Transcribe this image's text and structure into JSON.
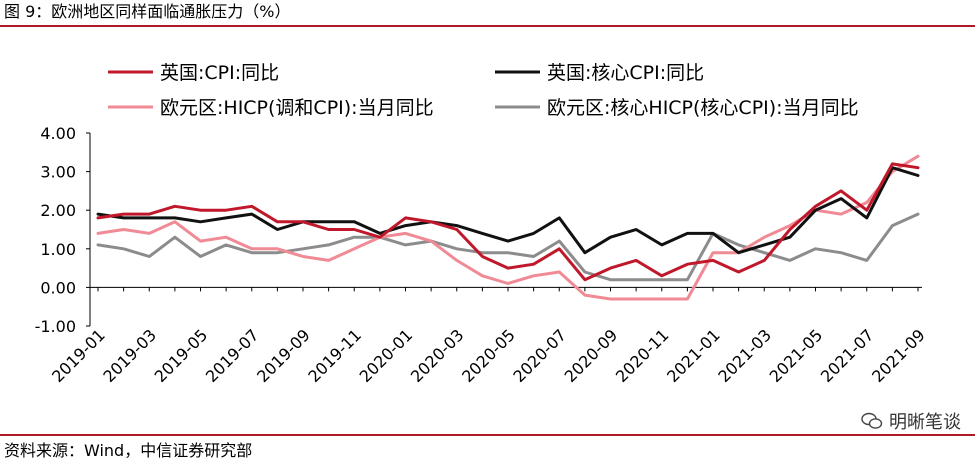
{
  "header": {
    "title": "图 9：欧洲地区同样面临通胀压力（%）"
  },
  "footer": {
    "source": "资料来源：Wind，中信证券研究部"
  },
  "watermark": {
    "text": "明晰笔谈"
  },
  "chart_data": {
    "type": "line",
    "title": "图 9：欧洲地区同样面临通胀压力（%）",
    "xlabel": "",
    "ylabel": "",
    "ylim": [
      -1.0,
      4.0
    ],
    "yticks": [
      "4.00",
      "3.00",
      "2.00",
      "1.00",
      "0.00",
      "-1.00"
    ],
    "grid": false,
    "legend_position": "top",
    "x": [
      "2019-01",
      "2019-02",
      "2019-03",
      "2019-04",
      "2019-05",
      "2019-06",
      "2019-07",
      "2019-08",
      "2019-09",
      "2019-10",
      "2019-11",
      "2019-12",
      "2020-01",
      "2020-02",
      "2020-03",
      "2020-04",
      "2020-05",
      "2020-06",
      "2020-07",
      "2020-08",
      "2020-09",
      "2020-10",
      "2020-11",
      "2020-12",
      "2021-01",
      "2021-02",
      "2021-03",
      "2021-04",
      "2021-05",
      "2021-06",
      "2021-07",
      "2021-08",
      "2021-09"
    ],
    "xtick_labels": [
      "2019-01",
      "2019-03",
      "2019-05",
      "2019-07",
      "2019-09",
      "2019-11",
      "2020-01",
      "2020-03",
      "2020-05",
      "2020-07",
      "2020-09",
      "2020-11",
      "2021-01",
      "2021-03",
      "2021-05",
      "2021-07",
      "2021-09"
    ],
    "series": [
      {
        "name": "英国:CPI:同比",
        "color": "#c0182a",
        "values": [
          1.8,
          1.9,
          1.9,
          2.1,
          2.0,
          2.0,
          2.1,
          1.7,
          1.7,
          1.5,
          1.5,
          1.3,
          1.8,
          1.7,
          1.5,
          0.8,
          0.5,
          0.6,
          1.0,
          0.2,
          0.5,
          0.7,
          0.3,
          0.6,
          0.7,
          0.4,
          0.7,
          1.5,
          2.1,
          2.5,
          2.0,
          3.2,
          3.1
        ]
      },
      {
        "name": "英国:核心CPI:同比",
        "color": "#111111",
        "values": [
          1.9,
          1.8,
          1.8,
          1.8,
          1.7,
          1.8,
          1.9,
          1.5,
          1.7,
          1.7,
          1.7,
          1.4,
          1.6,
          1.7,
          1.6,
          1.4,
          1.2,
          1.4,
          1.8,
          0.9,
          1.3,
          1.5,
          1.1,
          1.4,
          1.4,
          0.9,
          1.1,
          1.3,
          2.0,
          2.3,
          1.8,
          3.1,
          2.9
        ]
      },
      {
        "name": "欧元区:HICP(调和CPI):当月同比",
        "color": "#f08a95",
        "values": [
          1.4,
          1.5,
          1.4,
          1.7,
          1.2,
          1.3,
          1.0,
          1.0,
          0.8,
          0.7,
          1.0,
          1.3,
          1.4,
          1.2,
          0.7,
          0.3,
          0.1,
          0.3,
          0.4,
          -0.2,
          -0.3,
          -0.3,
          -0.3,
          -0.3,
          0.9,
          0.9,
          1.3,
          1.6,
          2.0,
          1.9,
          2.2,
          3.0,
          3.4
        ]
      },
      {
        "name": "欧元区:核心HICP(核心CPI):当月同比",
        "color": "#8c8c8c",
        "values": [
          1.1,
          1.0,
          0.8,
          1.3,
          0.8,
          1.1,
          0.9,
          0.9,
          1.0,
          1.1,
          1.3,
          1.3,
          1.1,
          1.2,
          1.0,
          0.9,
          0.9,
          0.8,
          1.2,
          0.4,
          0.2,
          0.2,
          0.2,
          0.2,
          1.4,
          1.1,
          0.9,
          0.7,
          1.0,
          0.9,
          0.7,
          1.6,
          1.9
        ]
      }
    ]
  }
}
